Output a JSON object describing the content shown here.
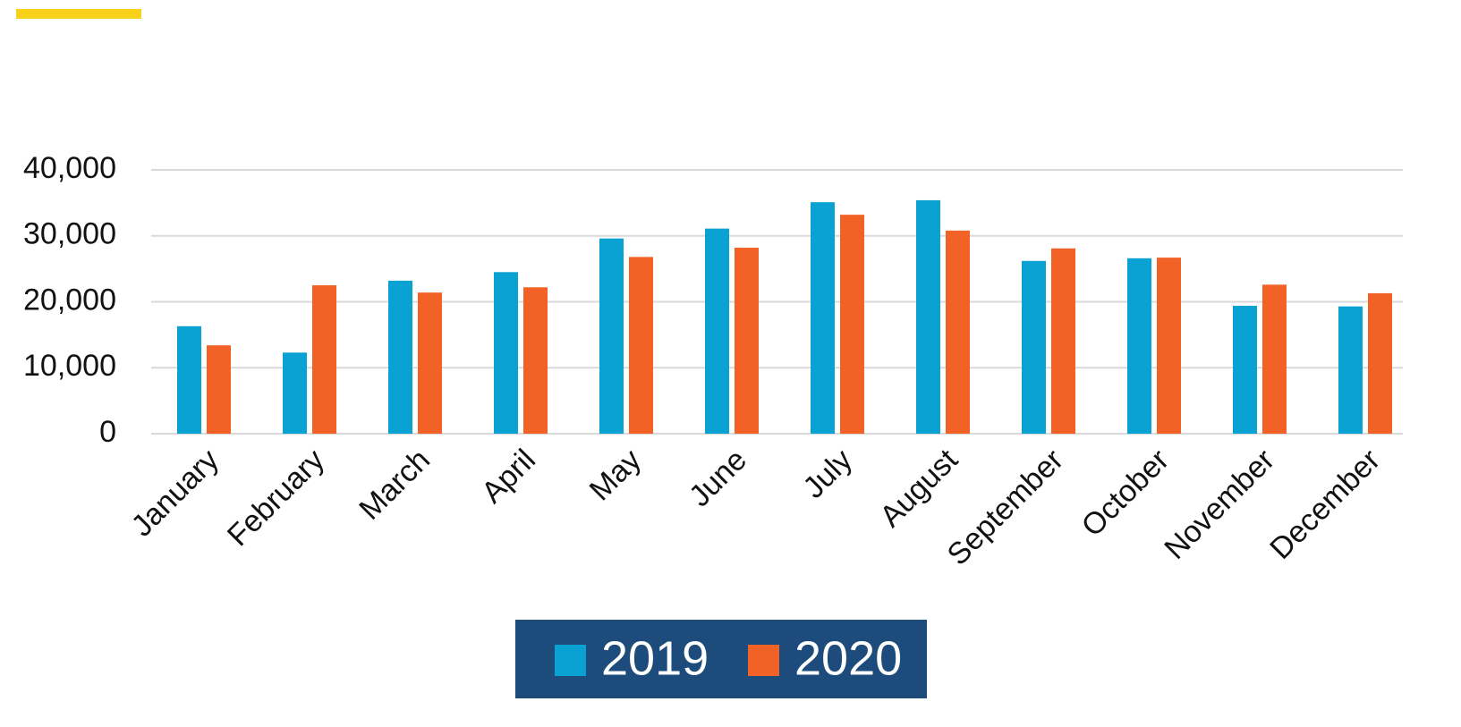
{
  "chart_data": {
    "type": "bar",
    "categories": [
      "January",
      "February",
      "March",
      "April",
      "May",
      "June",
      "July",
      "August",
      "September",
      "October",
      "November",
      "December"
    ],
    "series": [
      {
        "name": "2019",
        "color": "#0aa1d3",
        "values": [
          16300,
          12300,
          23200,
          24500,
          29600,
          31100,
          35100,
          35400,
          26200,
          26600,
          19400,
          19300
        ]
      },
      {
        "name": "2020",
        "color": "#f26125",
        "values": [
          13400,
          22500,
          21400,
          22200,
          26800,
          28200,
          33200,
          30800,
          28100,
          26700,
          22600,
          21300
        ]
      }
    ],
    "ylim": [
      0,
      40000
    ],
    "yticks": [
      0,
      {
        "value": 10000,
        "label": "10,000"
      },
      {
        "value": 20000,
        "label": "20,000"
      },
      {
        "value": 30000,
        "label": "30,000"
      },
      {
        "value": 40000,
        "label": "40,000"
      }
    ],
    "grid": true,
    "legend": "bottom"
  }
}
